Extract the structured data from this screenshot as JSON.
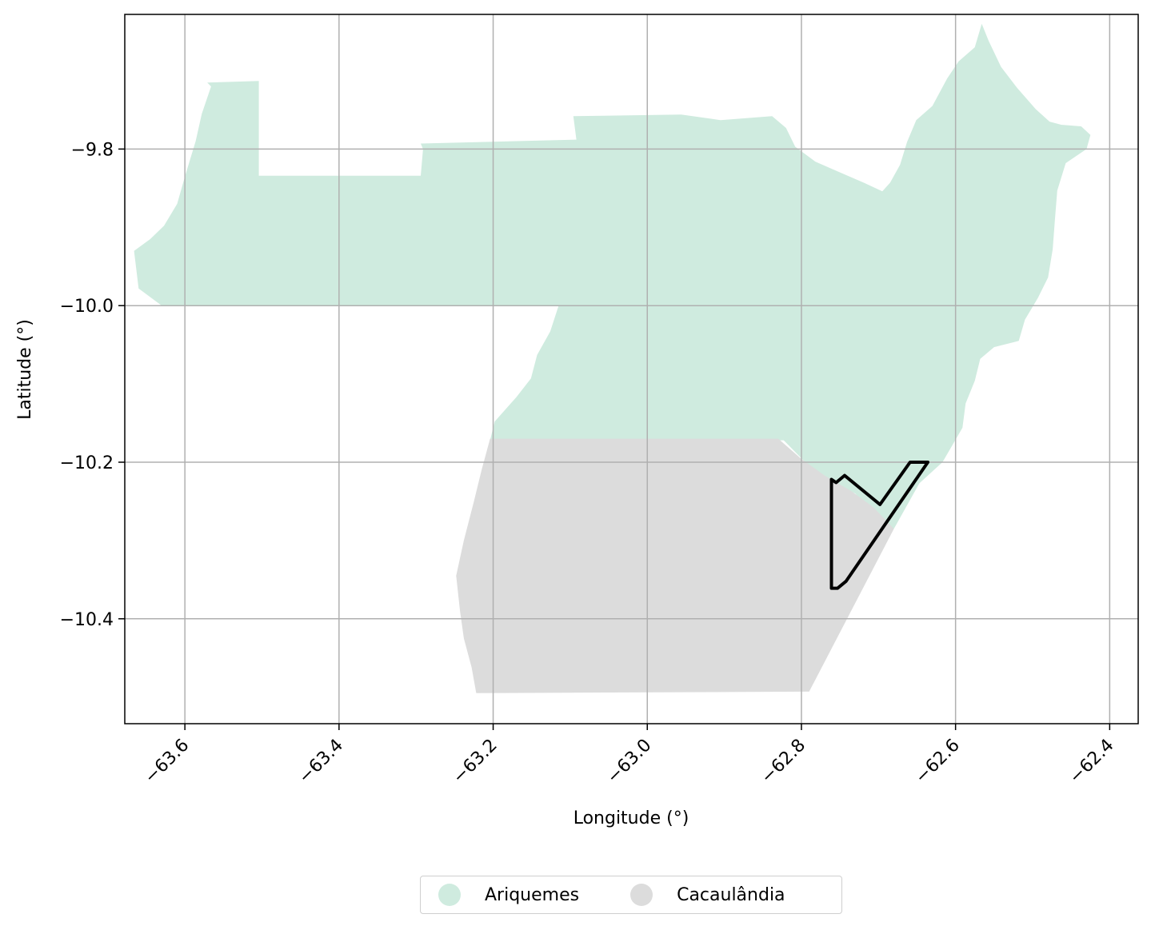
{
  "chart_data": {
    "type": "map",
    "xlabel": "Longitude (°)",
    "ylabel": "Latitude (°)",
    "xlim": [
      -63.678,
      -62.363
    ],
    "ylim": [
      -10.534,
      -9.628
    ],
    "xticks": [
      -63.6,
      -63.4,
      -63.2,
      -63.0,
      -62.8,
      -62.6,
      -62.4
    ],
    "xtick_labels": [
      "−63.6",
      "−63.4",
      "−63.2",
      "−63.0",
      "−62.8",
      "−62.6",
      "−62.4"
    ],
    "yticks": [
      -9.8,
      -10.0,
      -10.2,
      -10.4
    ],
    "ytick_labels": [
      "−9.8",
      "−10.0",
      "−10.2",
      "−10.4"
    ],
    "grid": true,
    "legend_position": "bottom-center",
    "regions": [
      {
        "name": "Ariquemes",
        "color": "#cfebdf",
        "polygon": [
          [
            -63.571,
            -9.715
          ],
          [
            -63.504,
            -9.713
          ],
          [
            -63.504,
            -9.834
          ],
          [
            -63.294,
            -9.834
          ],
          [
            -63.291,
            -9.8
          ],
          [
            -63.294,
            -9.793
          ],
          [
            -63.092,
            -9.788
          ],
          [
            -63.096,
            -9.758
          ],
          [
            -62.956,
            -9.756
          ],
          [
            -62.905,
            -9.763
          ],
          [
            -62.838,
            -9.758
          ],
          [
            -62.82,
            -9.773
          ],
          [
            -62.808,
            -9.797
          ],
          [
            -62.782,
            -9.816
          ],
          [
            -62.752,
            -9.829
          ],
          [
            -62.719,
            -9.843
          ],
          [
            -62.695,
            -9.854
          ],
          [
            -62.685,
            -9.843
          ],
          [
            -62.672,
            -9.82
          ],
          [
            -62.663,
            -9.791
          ],
          [
            -62.651,
            -9.763
          ],
          [
            -62.63,
            -9.745
          ],
          [
            -62.611,
            -9.71
          ],
          [
            -62.596,
            -9.688
          ],
          [
            -62.575,
            -9.67
          ],
          [
            -62.566,
            -9.64
          ],
          [
            -62.557,
            -9.662
          ],
          [
            -62.541,
            -9.695
          ],
          [
            -62.52,
            -9.722
          ],
          [
            -62.496,
            -9.749
          ],
          [
            -62.478,
            -9.765
          ],
          [
            -62.463,
            -9.769
          ],
          [
            -62.437,
            -9.771
          ],
          [
            -62.425,
            -9.782
          ],
          [
            -62.43,
            -9.8
          ],
          [
            -62.457,
            -9.818
          ],
          [
            -62.468,
            -9.853
          ],
          [
            -62.471,
            -9.89
          ],
          [
            -62.474,
            -9.928
          ],
          [
            -62.48,
            -9.964
          ],
          [
            -62.493,
            -9.99
          ],
          [
            -62.51,
            -10.018
          ],
          [
            -62.518,
            -10.045
          ],
          [
            -62.55,
            -10.053
          ],
          [
            -62.568,
            -10.068
          ],
          [
            -62.575,
            -10.096
          ],
          [
            -62.587,
            -10.125
          ],
          [
            -62.591,
            -10.156
          ],
          [
            -62.604,
            -10.178
          ],
          [
            -62.617,
            -10.2
          ],
          [
            -62.647,
            -10.227
          ],
          [
            -62.68,
            -10.285
          ],
          [
            -62.71,
            -10.263
          ],
          [
            -62.73,
            -10.24
          ],
          [
            -62.782,
            -10.213
          ],
          [
            -62.823,
            -10.172
          ],
          [
            -63.204,
            -10.172
          ],
          [
            -63.198,
            -10.148
          ],
          [
            -63.17,
            -10.117
          ],
          [
            -63.151,
            -10.093
          ],
          [
            -63.143,
            -10.063
          ],
          [
            -63.126,
            -10.033
          ],
          [
            -63.115,
            -10.0
          ],
          [
            -63.63,
            -10.0
          ],
          [
            -63.66,
            -9.978
          ],
          [
            -63.666,
            -9.93
          ],
          [
            -63.645,
            -9.915
          ],
          [
            -63.627,
            -9.898
          ],
          [
            -63.61,
            -9.87
          ],
          [
            -63.6,
            -9.835
          ],
          [
            -63.586,
            -9.79
          ],
          [
            -63.578,
            -9.755
          ],
          [
            -63.566,
            -9.72
          ]
        ]
      },
      {
        "name": "Cacaulândia",
        "color": "#dcdcdc",
        "polygon": [
          [
            -63.204,
            -10.17
          ],
          [
            -62.83,
            -10.17
          ],
          [
            -62.801,
            -10.195
          ],
          [
            -62.77,
            -10.217
          ],
          [
            -62.735,
            -10.237
          ],
          [
            -62.706,
            -10.258
          ],
          [
            -62.68,
            -10.285
          ],
          [
            -62.79,
            -10.493
          ],
          [
            -63.222,
            -10.495
          ],
          [
            -63.228,
            -10.462
          ],
          [
            -63.238,
            -10.425
          ],
          [
            -63.243,
            -10.39
          ],
          [
            -63.248,
            -10.345
          ],
          [
            -63.238,
            -10.3
          ],
          [
            -63.225,
            -10.25
          ],
          [
            -63.215,
            -10.21
          ]
        ]
      }
    ],
    "outline": {
      "color": "#000000",
      "polygon": [
        [
          -62.761,
          -10.222
        ],
        [
          -62.755,
          -10.226
        ],
        [
          -62.744,
          -10.217
        ],
        [
          -62.698,
          -10.254
        ],
        [
          -62.659,
          -10.2
        ],
        [
          -62.636,
          -10.2
        ],
        [
          -62.742,
          -10.352
        ],
        [
          -62.753,
          -10.361
        ],
        [
          -62.761,
          -10.361
        ]
      ]
    }
  },
  "legend": {
    "items": [
      {
        "label": "Ariquemes",
        "color": "#cfebdf"
      },
      {
        "label": "Cacaulândia",
        "color": "#dcdcdc"
      }
    ]
  }
}
